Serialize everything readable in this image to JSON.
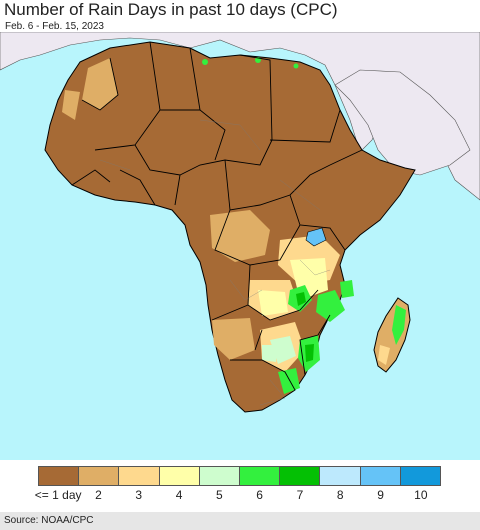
{
  "header": {
    "title": "Number of Rain Days in past 10 days (CPC)",
    "date_range": "Feb. 6 - Feb. 15, 2023"
  },
  "map": {
    "ocean_color": "#b8f5fc",
    "outside_land_color": "#ede8f1",
    "border_color": "#000000"
  },
  "legend": {
    "classes": [
      {
        "label": "<= 1 day",
        "color": "#a66a35"
      },
      {
        "label": "2",
        "color": "#dfae66"
      },
      {
        "label": "3",
        "color": "#fed98e"
      },
      {
        "label": "4",
        "color": "#ffffa9"
      },
      {
        "label": "5",
        "color": "#cefdce"
      },
      {
        "label": "6",
        "color": "#33f03e"
      },
      {
        "label": "7",
        "color": "#04c004"
      },
      {
        "label": "8",
        "color": "#bde9fd"
      },
      {
        "label": "9",
        "color": "#65c3f7"
      },
      {
        "label": "10",
        "color": "#1299db"
      }
    ]
  },
  "footer": {
    "source": "Source: NOAA/CPC"
  }
}
